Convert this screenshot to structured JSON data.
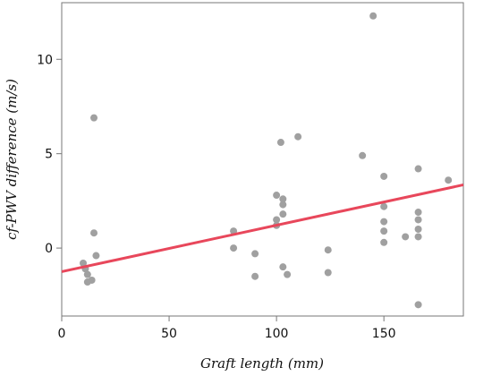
{
  "chart_data": {
    "type": "scatter",
    "title": "",
    "xlabel": "Graft length (mm)",
    "ylabel": "cf-PWV difference (m/s)",
    "xlim": [
      0,
      187
    ],
    "ylim": [
      -3.6,
      13.0
    ],
    "grid": false,
    "legend": "none",
    "x_ticks": [
      0,
      50,
      100,
      150
    ],
    "y_ticks": [
      0,
      5,
      10
    ],
    "colors": {
      "points": "#a0a0a0",
      "fit_line": "#e8475b",
      "frame": "#777777"
    },
    "points": [
      {
        "x": 10,
        "y": -0.8
      },
      {
        "x": 11,
        "y": -1.1
      },
      {
        "x": 12,
        "y": -1.4
      },
      {
        "x": 12,
        "y": -1.8
      },
      {
        "x": 14,
        "y": -1.7
      },
      {
        "x": 15,
        "y": 6.9
      },
      {
        "x": 15,
        "y": 0.8
      },
      {
        "x": 16,
        "y": -0.4
      },
      {
        "x": 80,
        "y": 0.9
      },
      {
        "x": 80,
        "y": 0.0
      },
      {
        "x": 90,
        "y": -0.3
      },
      {
        "x": 90,
        "y": -1.5
      },
      {
        "x": 100,
        "y": 2.8
      },
      {
        "x": 100,
        "y": 1.5
      },
      {
        "x": 100,
        "y": 1.2
      },
      {
        "x": 102,
        "y": 5.6
      },
      {
        "x": 103,
        "y": 2.6
      },
      {
        "x": 103,
        "y": 2.3
      },
      {
        "x": 103,
        "y": 1.8
      },
      {
        "x": 103,
        "y": -1.0
      },
      {
        "x": 105,
        "y": -1.4
      },
      {
        "x": 110,
        "y": 5.9
      },
      {
        "x": 124,
        "y": -0.1
      },
      {
        "x": 124,
        "y": -1.3
      },
      {
        "x": 140,
        "y": 4.9
      },
      {
        "x": 145,
        "y": 12.3
      },
      {
        "x": 150,
        "y": 3.8
      },
      {
        "x": 150,
        "y": 2.2
      },
      {
        "x": 150,
        "y": 1.4
      },
      {
        "x": 150,
        "y": 0.9
      },
      {
        "x": 150,
        "y": 0.3
      },
      {
        "x": 160,
        "y": 0.6
      },
      {
        "x": 166,
        "y": 4.2
      },
      {
        "x": 166,
        "y": 1.9
      },
      {
        "x": 166,
        "y": 1.5
      },
      {
        "x": 166,
        "y": 1.0
      },
      {
        "x": 166,
        "y": 0.6
      },
      {
        "x": 166,
        "y": -3.0
      },
      {
        "x": 180,
        "y": 3.6
      }
    ],
    "fit_line": {
      "x": [
        0,
        187
      ],
      "y": [
        -1.25,
        3.35
      ]
    }
  }
}
